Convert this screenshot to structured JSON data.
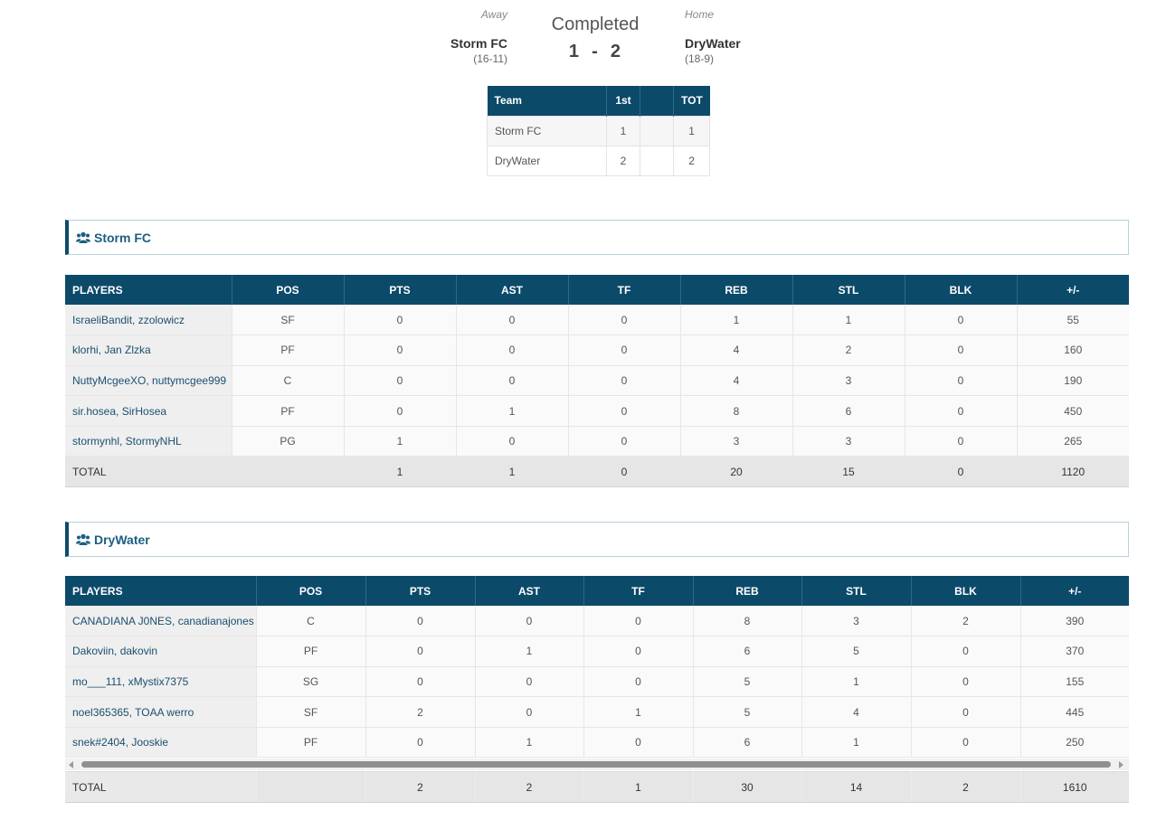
{
  "game": {
    "away_label": "Away",
    "home_label": "Home",
    "status": "Completed",
    "score": "1  -  2",
    "away_team": "Storm FC",
    "away_record": "(16-11)",
    "home_team": "DryWater",
    "home_record": "(18-9)"
  },
  "period_table": {
    "headers": [
      "Team",
      "1st",
      "",
      "TOT"
    ],
    "rows": [
      {
        "team": "Storm FC",
        "p1": "1",
        "blank": "",
        "tot": "1"
      },
      {
        "team": "DryWater",
        "p1": "2",
        "blank": "",
        "tot": "2"
      }
    ]
  },
  "columns": [
    "PLAYERS",
    "POS",
    "PTS",
    "AST",
    "TF",
    "REB",
    "STL",
    "BLK",
    "+/-"
  ],
  "icons": {
    "team": "users-icon"
  },
  "colors": {
    "header_bg": "#0c4a6a",
    "link": "#1b5f82"
  },
  "teams": [
    {
      "name": "Storm FC",
      "players": [
        {
          "name": "IsraeliBandit, zzolowicz",
          "pos": "SF",
          "pts": "0",
          "ast": "0",
          "tf": "0",
          "reb": "1",
          "stl": "1",
          "blk": "0",
          "pm": "55"
        },
        {
          "name": "klorhi, Jan Zlzka",
          "pos": "PF",
          "pts": "0",
          "ast": "0",
          "tf": "0",
          "reb": "4",
          "stl": "2",
          "blk": "0",
          "pm": "160"
        },
        {
          "name": "NuttyMcgeeXO, nuttymcgee999",
          "pos": "C",
          "pts": "0",
          "ast": "0",
          "tf": "0",
          "reb": "4",
          "stl": "3",
          "blk": "0",
          "pm": "190"
        },
        {
          "name": "sir.hosea, SirHosea",
          "pos": "PF",
          "pts": "0",
          "ast": "1",
          "tf": "0",
          "reb": "8",
          "stl": "6",
          "blk": "0",
          "pm": "450"
        },
        {
          "name": "stormynhl, StormyNHL",
          "pos": "PG",
          "pts": "1",
          "ast": "0",
          "tf": "0",
          "reb": "3",
          "stl": "3",
          "blk": "0",
          "pm": "265"
        }
      ],
      "total": {
        "label": "TOTAL",
        "pos": "",
        "pts": "1",
        "ast": "1",
        "tf": "0",
        "reb": "20",
        "stl": "15",
        "blk": "0",
        "pm": "1120"
      }
    },
    {
      "name": "DryWater",
      "players": [
        {
          "name": "CANADIANA J0NES, canadianajones",
          "pos": "C",
          "pts": "0",
          "ast": "0",
          "tf": "0",
          "reb": "8",
          "stl": "3",
          "blk": "2",
          "pm": "390"
        },
        {
          "name": "Dakoviin, dakovin",
          "pos": "PF",
          "pts": "0",
          "ast": "1",
          "tf": "0",
          "reb": "6",
          "stl": "5",
          "blk": "0",
          "pm": "370"
        },
        {
          "name": "mo___111, xMystix7375",
          "pos": "SG",
          "pts": "0",
          "ast": "0",
          "tf": "0",
          "reb": "5",
          "stl": "1",
          "blk": "0",
          "pm": "155"
        },
        {
          "name": "noel365365, TOAA werro",
          "pos": "SF",
          "pts": "2",
          "ast": "0",
          "tf": "1",
          "reb": "5",
          "stl": "4",
          "blk": "0",
          "pm": "445"
        },
        {
          "name": "snek#2404, Jooskie",
          "pos": "PF",
          "pts": "0",
          "ast": "1",
          "tf": "0",
          "reb": "6",
          "stl": "1",
          "blk": "0",
          "pm": "250"
        }
      ],
      "total": {
        "label": "TOTAL",
        "pos": "",
        "pts": "2",
        "ast": "2",
        "tf": "1",
        "reb": "30",
        "stl": "14",
        "blk": "2",
        "pm": "1610"
      }
    }
  ]
}
